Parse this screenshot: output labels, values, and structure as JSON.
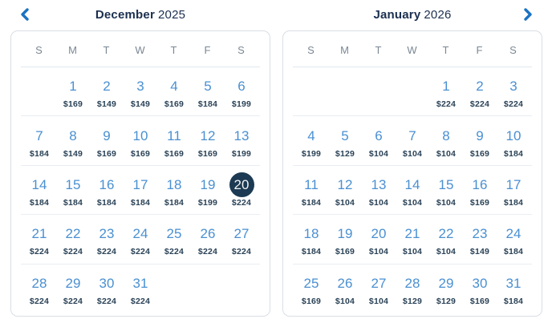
{
  "widget": "flight-fare-calendar",
  "nav": {
    "prev_icon": "chevron-left",
    "next_icon": "chevron-right"
  },
  "colors": {
    "accent_blue": "#1a73c2",
    "day_number_blue": "#4a90d2",
    "title_navy": "#1b2f4f",
    "price_navy": "#2a4257",
    "weekday_gray": "#7b8894",
    "selected_circle": "#1c3a53",
    "selected_text": "#f3f5f6",
    "card_border": "#d9dee4"
  },
  "selected": {
    "month": "December",
    "year": "2025",
    "day": "20",
    "price": "$224"
  },
  "months": [
    {
      "name": "December",
      "year": "2025",
      "weekdays": [
        "S",
        "M",
        "T",
        "W",
        "T",
        "F",
        "S"
      ],
      "weeks": [
        [
          null,
          {
            "day": "1",
            "price": "$169"
          },
          {
            "day": "2",
            "price": "$149"
          },
          {
            "day": "3",
            "price": "$149"
          },
          {
            "day": "4",
            "price": "$169"
          },
          {
            "day": "5",
            "price": "$184"
          },
          {
            "day": "6",
            "price": "$199"
          }
        ],
        [
          {
            "day": "7",
            "price": "$184"
          },
          {
            "day": "8",
            "price": "$149"
          },
          {
            "day": "9",
            "price": "$169"
          },
          {
            "day": "10",
            "price": "$169"
          },
          {
            "day": "11",
            "price": "$169"
          },
          {
            "day": "12",
            "price": "$169"
          },
          {
            "day": "13",
            "price": "$199"
          }
        ],
        [
          {
            "day": "14",
            "price": "$184"
          },
          {
            "day": "15",
            "price": "$184"
          },
          {
            "day": "16",
            "price": "$184"
          },
          {
            "day": "17",
            "price": "$184"
          },
          {
            "day": "18",
            "price": "$184"
          },
          {
            "day": "19",
            "price": "$199"
          },
          {
            "day": "20",
            "price": "$224",
            "selected": true
          }
        ],
        [
          {
            "day": "21",
            "price": "$224"
          },
          {
            "day": "22",
            "price": "$224"
          },
          {
            "day": "23",
            "price": "$224"
          },
          {
            "day": "24",
            "price": "$224"
          },
          {
            "day": "25",
            "price": "$224"
          },
          {
            "day": "26",
            "price": "$224"
          },
          {
            "day": "27",
            "price": "$224"
          }
        ],
        [
          {
            "day": "28",
            "price": "$224"
          },
          {
            "day": "29",
            "price": "$224"
          },
          {
            "day": "30",
            "price": "$224"
          },
          {
            "day": "31",
            "price": "$224"
          },
          null,
          null,
          null
        ]
      ]
    },
    {
      "name": "January",
      "year": "2026",
      "weekdays": [
        "S",
        "M",
        "T",
        "W",
        "T",
        "F",
        "S"
      ],
      "weeks": [
        [
          null,
          null,
          null,
          null,
          {
            "day": "1",
            "price": "$224"
          },
          {
            "day": "2",
            "price": "$224"
          },
          {
            "day": "3",
            "price": "$224"
          }
        ],
        [
          {
            "day": "4",
            "price": "$199"
          },
          {
            "day": "5",
            "price": "$129"
          },
          {
            "day": "6",
            "price": "$104"
          },
          {
            "day": "7",
            "price": "$104"
          },
          {
            "day": "8",
            "price": "$104"
          },
          {
            "day": "9",
            "price": "$169"
          },
          {
            "day": "10",
            "price": "$184"
          }
        ],
        [
          {
            "day": "11",
            "price": "$184"
          },
          {
            "day": "12",
            "price": "$104"
          },
          {
            "day": "13",
            "price": "$104"
          },
          {
            "day": "14",
            "price": "$104"
          },
          {
            "day": "15",
            "price": "$104"
          },
          {
            "day": "16",
            "price": "$169"
          },
          {
            "day": "17",
            "price": "$184"
          }
        ],
        [
          {
            "day": "18",
            "price": "$184"
          },
          {
            "day": "19",
            "price": "$169"
          },
          {
            "day": "20",
            "price": "$104"
          },
          {
            "day": "21",
            "price": "$104"
          },
          {
            "day": "22",
            "price": "$104"
          },
          {
            "day": "23",
            "price": "$149"
          },
          {
            "day": "24",
            "price": "$184"
          }
        ],
        [
          {
            "day": "25",
            "price": "$169"
          },
          {
            "day": "26",
            "price": "$104"
          },
          {
            "day": "27",
            "price": "$104"
          },
          {
            "day": "28",
            "price": "$129"
          },
          {
            "day": "29",
            "price": "$129"
          },
          {
            "day": "30",
            "price": "$169"
          },
          {
            "day": "31",
            "price": "$184"
          }
        ]
      ]
    }
  ]
}
